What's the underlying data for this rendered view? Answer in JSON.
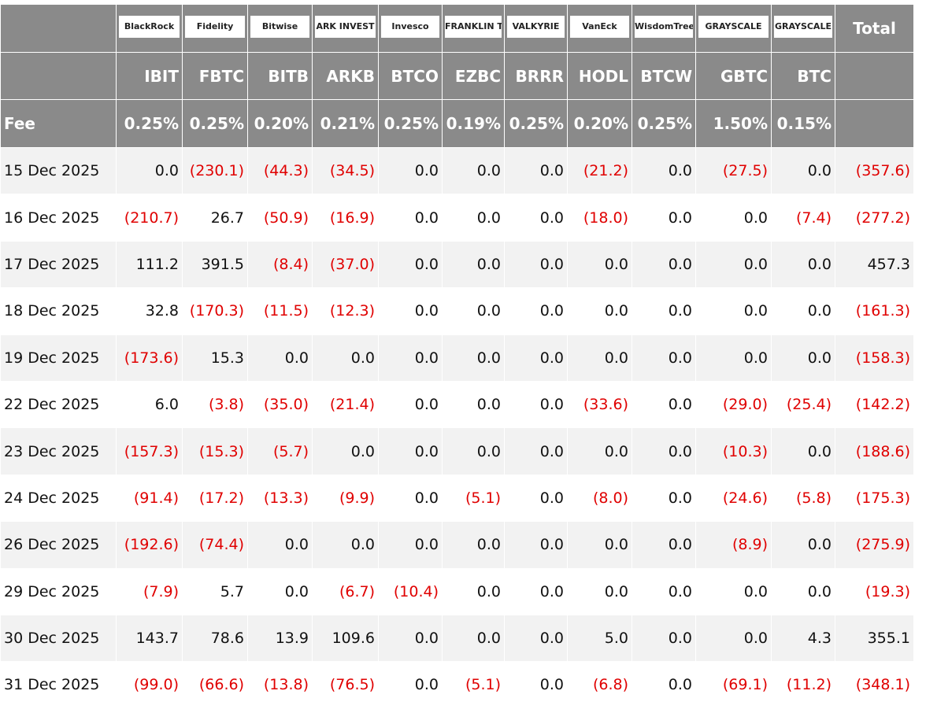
{
  "header": {
    "logos": [
      "BlackRock",
      "Fidelity",
      "Bitwise",
      "ARK INVEST",
      "Invesco",
      "FRANKLIN TEMPLETON",
      "VALKYRIE",
      "VanEck",
      "WisdomTree",
      "GRAYSCALE",
      "GRAYSCALE"
    ],
    "total": "Total",
    "tickers": [
      "IBIT",
      "FBTC",
      "BITB",
      "ARKB",
      "BTCO",
      "EZBC",
      "BRRR",
      "HODL",
      "BTCW",
      "GBTC",
      "BTC"
    ]
  },
  "fee": {
    "label": "Fee",
    "values": [
      "0.25%",
      "0.25%",
      "0.20%",
      "0.21%",
      "0.25%",
      "0.19%",
      "0.25%",
      "0.20%",
      "0.25%",
      "1.50%",
      "0.15%"
    ]
  },
  "rows": [
    {
      "date": "15 Dec 2025",
      "values": [
        "0.0",
        "(230.1)",
        "(44.3)",
        "(34.5)",
        "0.0",
        "0.0",
        "0.0",
        "(21.2)",
        "0.0",
        "(27.5)",
        "0.0"
      ],
      "total": "(357.6)"
    },
    {
      "date": "16 Dec 2025",
      "values": [
        "(210.7)",
        "26.7",
        "(50.9)",
        "(16.9)",
        "0.0",
        "0.0",
        "0.0",
        "(18.0)",
        "0.0",
        "0.0",
        "(7.4)"
      ],
      "total": "(277.2)"
    },
    {
      "date": "17 Dec 2025",
      "values": [
        "111.2",
        "391.5",
        "(8.4)",
        "(37.0)",
        "0.0",
        "0.0",
        "0.0",
        "0.0",
        "0.0",
        "0.0",
        "0.0"
      ],
      "total": "457.3"
    },
    {
      "date": "18 Dec 2025",
      "values": [
        "32.8",
        "(170.3)",
        "(11.5)",
        "(12.3)",
        "0.0",
        "0.0",
        "0.0",
        "0.0",
        "0.0",
        "0.0",
        "0.0"
      ],
      "total": "(161.3)"
    },
    {
      "date": "19 Dec 2025",
      "values": [
        "(173.6)",
        "15.3",
        "0.0",
        "0.0",
        "0.0",
        "0.0",
        "0.0",
        "0.0",
        "0.0",
        "0.0",
        "0.0"
      ],
      "total": "(158.3)"
    },
    {
      "date": "22 Dec 2025",
      "values": [
        "6.0",
        "(3.8)",
        "(35.0)",
        "(21.4)",
        "0.0",
        "0.0",
        "0.0",
        "(33.6)",
        "0.0",
        "(29.0)",
        "(25.4)"
      ],
      "total": "(142.2)"
    },
    {
      "date": "23 Dec 2025",
      "values": [
        "(157.3)",
        "(15.3)",
        "(5.7)",
        "0.0",
        "0.0",
        "0.0",
        "0.0",
        "0.0",
        "0.0",
        "(10.3)",
        "0.0"
      ],
      "total": "(188.6)"
    },
    {
      "date": "24 Dec 2025",
      "values": [
        "(91.4)",
        "(17.2)",
        "(13.3)",
        "(9.9)",
        "0.0",
        "(5.1)",
        "0.0",
        "(8.0)",
        "0.0",
        "(24.6)",
        "(5.8)"
      ],
      "total": "(175.3)"
    },
    {
      "date": "26 Dec 2025",
      "values": [
        "(192.6)",
        "(74.4)",
        "0.0",
        "0.0",
        "0.0",
        "0.0",
        "0.0",
        "0.0",
        "0.0",
        "(8.9)",
        "0.0"
      ],
      "total": "(275.9)"
    },
    {
      "date": "29 Dec 2025",
      "values": [
        "(7.9)",
        "5.7",
        "0.0",
        "(6.7)",
        "(10.4)",
        "0.0",
        "0.0",
        "0.0",
        "0.0",
        "0.0",
        "0.0"
      ],
      "total": "(19.3)"
    },
    {
      "date": "30 Dec 2025",
      "values": [
        "143.7",
        "78.6",
        "13.9",
        "109.6",
        "0.0",
        "0.0",
        "0.0",
        "5.0",
        "0.0",
        "0.0",
        "4.3"
      ],
      "total": "355.1"
    },
    {
      "date": "31 Dec 2025",
      "values": [
        "(99.0)",
        "(66.6)",
        "(13.8)",
        "(76.5)",
        "0.0",
        "(5.1)",
        "0.0",
        "(6.8)",
        "0.0",
        "(69.1)",
        "(11.2)"
      ],
      "total": "(348.1)"
    }
  ]
}
